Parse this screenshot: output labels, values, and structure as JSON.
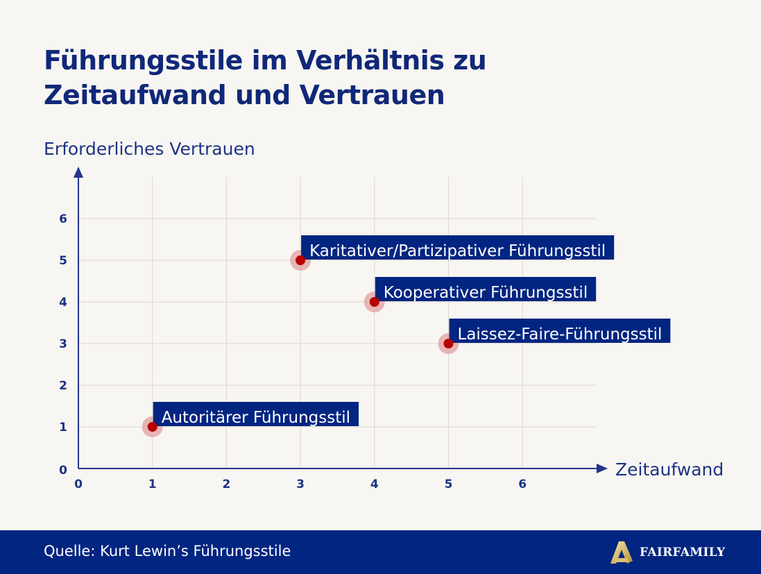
{
  "chart_data": {
    "type": "scatter",
    "title": "Führungsstile im Verhältnis zu Zeitaufwand und Vertrauen",
    "xlabel": "Zeitaufwand",
    "ylabel": "Erforderliches Vertrauen",
    "xlim": [
      0,
      7
    ],
    "ylim": [
      0,
      7
    ],
    "xticks": [
      "0",
      "1",
      "2",
      "3",
      "4",
      "5",
      "6"
    ],
    "yticks": [
      "0",
      "1",
      "2",
      "3",
      "4",
      "5",
      "6"
    ],
    "grid": true,
    "points": [
      {
        "label": "Autoritärer Führungsstil",
        "x": 1,
        "y": 1
      },
      {
        "label": "Karitativer/Partizipativer Führungsstil",
        "x": 3,
        "y": 5
      },
      {
        "label": "Kooperativer Führungsstil",
        "x": 4,
        "y": 4
      },
      {
        "label": "Laissez-Faire-Führungsstil",
        "x": 5,
        "y": 3
      }
    ],
    "colors": {
      "point": "#b80000",
      "halo": "#e3a9a9",
      "label_bg": "#022581",
      "axis": "#22358a",
      "grid": "#dcd6d3"
    }
  },
  "footer": {
    "source": "Quelle: Kurt Lewin’s Führungsstile",
    "logo_text": "FAIRFAMILY"
  }
}
